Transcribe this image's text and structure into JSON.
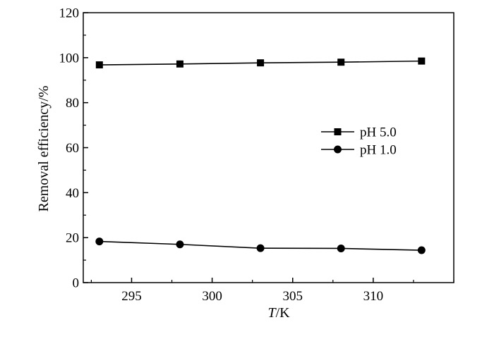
{
  "chart_data": {
    "type": "line",
    "xlabel_italic": "T",
    "xlabel_rest": "/K",
    "ylabel": "Removal efficiency/%",
    "xlim": [
      292,
      315
    ],
    "ylim": [
      0,
      120
    ],
    "xticks": [
      295,
      300,
      305,
      310
    ],
    "yticks": [
      0,
      20,
      40,
      60,
      80,
      100,
      120
    ],
    "x": [
      293,
      298,
      303,
      308,
      313
    ],
    "series": [
      {
        "name": "pH 5.0",
        "marker": "square",
        "values": [
          96.8,
          97.2,
          97.7,
          98.0,
          98.5
        ]
      },
      {
        "name": "pH 1.0",
        "marker": "circle",
        "values": [
          18.3,
          17.0,
          15.3,
          15.2,
          14.4
        ]
      }
    ],
    "legend_position": "center-right",
    "grid": false
  }
}
